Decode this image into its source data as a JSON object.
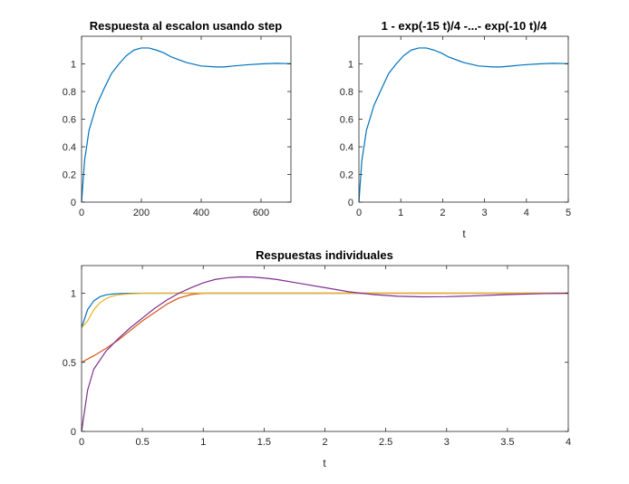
{
  "window": {
    "background": "#ffffff"
  },
  "colors": {
    "axis": "#262626",
    "series": [
      "#0072BD",
      "#D95319",
      "#EDB120",
      "#7E2F8E"
    ]
  },
  "chart_data": [
    {
      "id": "p1",
      "type": "line",
      "title": "Respuesta al escalon usando step",
      "xlabel": "",
      "ylabel": "",
      "xlim": [
        0,
        700
      ],
      "ylim": [
        0,
        1.2
      ],
      "xticks": [
        0,
        200,
        400,
        600
      ],
      "xtick_labels": [
        "0",
        "200",
        "400",
        "600"
      ],
      "yticks": [
        0,
        0.2,
        0.4,
        0.6,
        0.8,
        1
      ],
      "ytick_labels": [
        "0",
        "0.2",
        "0.4",
        "0.6",
        "0.8",
        "1"
      ],
      "grid": false,
      "series": [
        {
          "color": "#0072BD",
          "x": [
            0,
            10,
            25,
            50,
            75,
            100,
            125,
            150,
            175,
            200,
            225,
            250,
            275,
            300,
            350,
            400,
            450,
            475,
            500,
            550,
            600,
            650,
            700
          ],
          "y": [
            0,
            0.3,
            0.52,
            0.7,
            0.82,
            0.93,
            1.0,
            1.06,
            1.1,
            1.115,
            1.115,
            1.1,
            1.08,
            1.05,
            1.01,
            0.985,
            0.978,
            0.978,
            0.983,
            0.993,
            1.0,
            1.004,
            1.002
          ]
        }
      ]
    },
    {
      "id": "p2",
      "type": "line",
      "title": "1 - exp(-15 t)/4 -...- exp(-10 t)/4",
      "xlabel": "t",
      "ylabel": "",
      "xlim": [
        0,
        5
      ],
      "ylim": [
        0,
        1.2
      ],
      "xticks": [
        0,
        1,
        2,
        3,
        4,
        5
      ],
      "xtick_labels": [
        "0",
        "1",
        "2",
        "3",
        "4",
        "5"
      ],
      "yticks": [
        0,
        0.2,
        0.4,
        0.6,
        0.8,
        1
      ],
      "ytick_labels": [
        "0",
        "0.2",
        "0.4",
        "0.6",
        "0.8",
        "1"
      ],
      "grid": false,
      "series": [
        {
          "color": "#0072BD",
          "x": [
            0,
            0.07,
            0.18,
            0.36,
            0.54,
            0.71,
            0.89,
            1.07,
            1.25,
            1.43,
            1.61,
            1.79,
            1.96,
            2.14,
            2.5,
            2.86,
            3.21,
            3.39,
            3.57,
            3.93,
            4.29,
            4.64,
            5
          ],
          "y": [
            0,
            0.3,
            0.52,
            0.7,
            0.82,
            0.93,
            1.0,
            1.06,
            1.1,
            1.115,
            1.115,
            1.1,
            1.08,
            1.05,
            1.01,
            0.985,
            0.978,
            0.978,
            0.983,
            0.993,
            1.0,
            1.004,
            1.002
          ]
        }
      ]
    },
    {
      "id": "p3",
      "type": "line",
      "title": "Respuestas individuales",
      "xlabel": "t",
      "ylabel": "",
      "xlim": [
        0,
        4
      ],
      "ylim": [
        0,
        1.2
      ],
      "xticks": [
        0,
        0.5,
        1,
        1.5,
        2,
        2.5,
        3,
        3.5,
        4
      ],
      "xtick_labels": [
        "0",
        "0.5",
        "1",
        "1.5",
        "2",
        "2.5",
        "3",
        "3.5",
        "4"
      ],
      "yticks": [
        0,
        0.5,
        1
      ],
      "ytick_labels": [
        "0",
        "0.5",
        "1"
      ],
      "grid": false,
      "series": [
        {
          "color": "#0072BD",
          "x": [
            0,
            0.05,
            0.1,
            0.15,
            0.2,
            0.25,
            0.3,
            0.4,
            0.5,
            0.7,
            1,
            2,
            3,
            4
          ],
          "y": [
            0.75,
            0.882,
            0.944,
            0.974,
            0.988,
            0.994,
            0.997,
            0.999,
            1.0,
            1.0,
            1.0,
            1.0,
            1.0,
            1.0
          ]
        },
        {
          "color": "#D95319",
          "x": [
            0,
            0.1,
            0.2,
            0.3,
            0.4,
            0.5,
            0.6,
            0.7,
            0.8,
            0.9,
            1,
            1.2,
            1.5,
            2,
            3,
            4
          ],
          "y": [
            0.5,
            0.547,
            0.6,
            0.66,
            0.73,
            0.8,
            0.86,
            0.92,
            0.965,
            0.99,
            1.0,
            1.0,
            1.0,
            1.0,
            1.0,
            1.0
          ]
        },
        {
          "color": "#EDB120",
          "x": [
            0,
            0.05,
            0.1,
            0.15,
            0.2,
            0.25,
            0.3,
            0.4,
            0.5,
            0.7,
            1,
            2,
            3,
            4
          ],
          "y": [
            0.75,
            0.8,
            0.88,
            0.93,
            0.96,
            0.978,
            0.988,
            0.996,
            0.999,
            1.0,
            1.0,
            1.0,
            1.0,
            1.0
          ]
        },
        {
          "color": "#7E2F8E",
          "x": [
            0,
            0.05,
            0.1,
            0.2,
            0.3,
            0.4,
            0.5,
            0.6,
            0.7,
            0.8,
            0.9,
            1,
            1.1,
            1.2,
            1.3,
            1.4,
            1.5,
            1.6,
            1.8,
            2,
            2.2,
            2.4,
            2.6,
            2.8,
            3,
            3.2,
            3.5,
            3.8,
            4
          ],
          "y": [
            0,
            0.3,
            0.45,
            0.58,
            0.67,
            0.75,
            0.82,
            0.89,
            0.95,
            1.0,
            1.04,
            1.075,
            1.1,
            1.112,
            1.118,
            1.117,
            1.11,
            1.1,
            1.07,
            1.04,
            1.01,
            0.99,
            0.978,
            0.974,
            0.975,
            0.98,
            0.99,
            0.997,
            1.0
          ]
        }
      ]
    }
  ]
}
